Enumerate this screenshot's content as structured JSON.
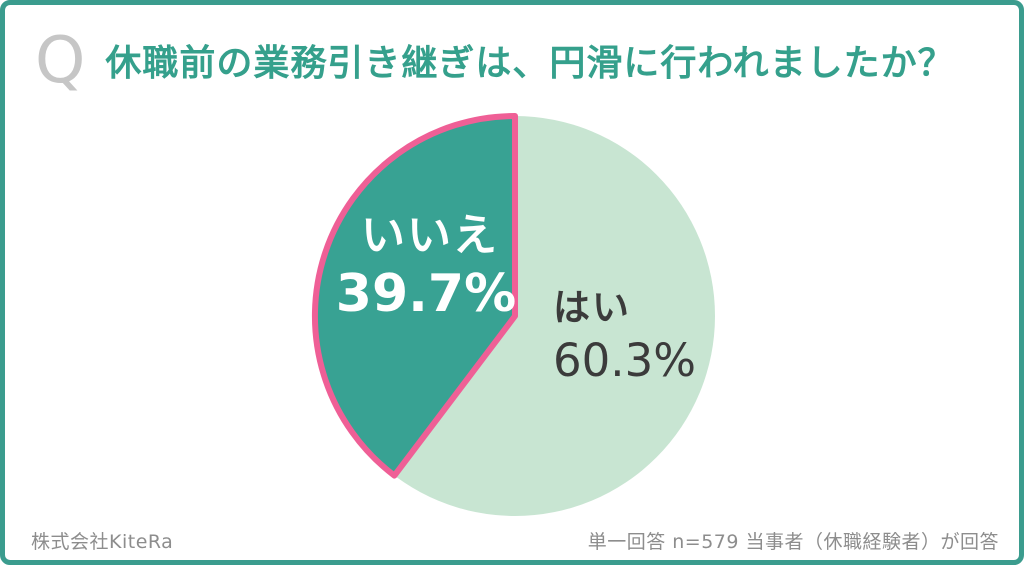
{
  "card": {
    "q_mark": "Q",
    "title": "休職前の業務引き継ぎは、円滑に行われましたか？",
    "footer_left": "株式会社KiteRa",
    "footer_right": "単一回答 n=579 当事者（休職経験者）が回答"
  },
  "labels": {
    "no_name": "いいえ",
    "no_value": "39.7%",
    "yes_name": "はい",
    "yes_value": "60.3%"
  },
  "chart_data": {
    "type": "pie",
    "title": "休職前の業務引き継ぎは、円滑に行われましたか？",
    "unit": "%",
    "sample_note": "単一回答 n=579 当事者（休職経験者）が回答",
    "n": 579,
    "start_angle": "12 o'clock",
    "no_slice_direction": "counterclockwise",
    "legend_position": "labels inside slices",
    "slices": [
      {
        "label": "はい",
        "value": 60.3,
        "color": "#c8e5d2",
        "text_color": "#3b3b3b"
      },
      {
        "label": "いいえ",
        "value": 39.7,
        "color": "#38a293",
        "border_color": "#ef5f96",
        "text_color": "#ffffff"
      }
    ]
  },
  "colors": {
    "card_border": "#3b9c8e",
    "title_text": "#35a08c",
    "q_mark": "#c6c6c6",
    "footer_text": "#8d8d8d"
  }
}
